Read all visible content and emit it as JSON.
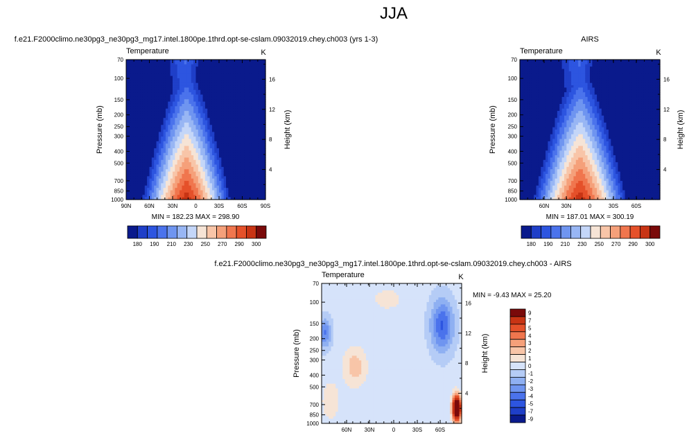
{
  "figure": {
    "title": "JJA"
  },
  "colors": {
    "scale": [
      "#0a1a8c",
      "#1f3fc8",
      "#2d55e0",
      "#4b73ec",
      "#6f95f0",
      "#98b6f4",
      "#c4d6f8",
      "#f6e4d6",
      "#f8c5a8",
      "#f5a07a",
      "#f0764e",
      "#e5512a",
      "#c83414",
      "#7a0a0a"
    ],
    "diff_scale": [
      "#0a1a8c",
      "#1f3fc8",
      "#2d55e0",
      "#4b73ec",
      "#6f95f0",
      "#8fb0f2",
      "#b5ccf6",
      "#d6e3fa",
      "#f6e4d6",
      "#f8c5a8",
      "#f5a07a",
      "#f0764e",
      "#e5512a",
      "#c83414",
      "#7a0a0a"
    ]
  },
  "panels": {
    "model": {
      "title": "f.e21.F2000climo.ne30pg3_ne30pg3_mg17.intel.1800pe.1thrd.opt-se-cslam.09032019.chey.ch003 (yrs 1-3)",
      "variable": "Temperature",
      "units": "K",
      "ylabel": "Pressure (mb)",
      "ylabel_right": "Height (km)",
      "stats": "MIN = 182.23  MAX = 298.90"
    },
    "obs": {
      "title": "AIRS",
      "variable": "Temperature",
      "units": "K",
      "ylabel": "Pressure (mb)",
      "ylabel_right": "Height (km)",
      "stats": "MIN = 187.01  MAX = 300.19"
    },
    "diff": {
      "title": "f.e21.F2000climo.ne30pg3_ne30pg3_mg17.intel.1800pe.1thrd.opt-se-cslam.09032019.chey.ch003 - AIRS",
      "variable": "Temperature",
      "units": "K",
      "ylabel": "Pressure (mb)",
      "ylabel_right": "Height (km)",
      "stats": "MIN =  -9.43  MAX =  25.20"
    }
  },
  "chart_data": [
    {
      "type": "heatmap",
      "title": "f.e21.F2000climo.ne30pg3_ne30pg3_mg17.intel.1800pe.1thrd.opt-se-cslam.09032019.chey.ch003 (yrs 1-3)",
      "x_ticks": [
        "90N",
        "60N",
        "30N",
        "0",
        "30S",
        "60S",
        "90S"
      ],
      "y_ticks": [
        "70",
        "100",
        "150",
        "200",
        "250",
        "300",
        "400",
        "500",
        "700",
        "850",
        "1000"
      ],
      "y_right_ticks": [
        "16",
        "12",
        "8",
        "4"
      ],
      "ylabel": "Pressure (mb)",
      "ylabel_right": "Height (km)",
      "colorbar_labels": [
        "180",
        "190",
        "210",
        "230",
        "250",
        "270",
        "290",
        "300"
      ],
      "min": 182.23,
      "max": 298.9
    },
    {
      "type": "heatmap",
      "title": "AIRS",
      "x_ticks": [
        "60N",
        "30N",
        "0",
        "30S",
        "60S"
      ],
      "y_ticks": [
        "70",
        "100",
        "150",
        "200",
        "250",
        "300",
        "400",
        "500",
        "700",
        "850",
        "1000"
      ],
      "y_right_ticks": [
        "16",
        "12",
        "8",
        "4"
      ],
      "ylabel": "Pressure (mb)",
      "ylabel_right": "Height (km)",
      "colorbar_labels": [
        "180",
        "190",
        "210",
        "230",
        "250",
        "270",
        "290",
        "300"
      ],
      "min": 187.01,
      "max": 300.19
    },
    {
      "type": "heatmap",
      "title": "f.e21.F2000climo.ne30pg3_ne30pg3_mg17.intel.1800pe.1thrd.opt-se-cslam.09032019.chey.ch003 - AIRS",
      "x_ticks": [
        "60N",
        "30N",
        "0",
        "30S",
        "60S"
      ],
      "y_ticks": [
        "70",
        "100",
        "150",
        "200",
        "250",
        "300",
        "400",
        "500",
        "700",
        "850",
        "1000"
      ],
      "y_right_ticks": [
        "16",
        "12",
        "8",
        "4"
      ],
      "ylabel": "Pressure (mb)",
      "ylabel_right": "Height (km)",
      "colorbar_labels": [
        "9",
        "7",
        "5",
        "4",
        "3",
        "2",
        "1",
        "0",
        "-1",
        "-2",
        "-3",
        "-4",
        "-5",
        "-7",
        "-9"
      ],
      "min": -9.43,
      "max": 25.2
    }
  ]
}
